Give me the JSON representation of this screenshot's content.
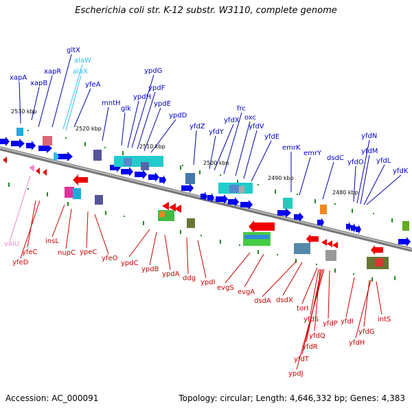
{
  "title": "Escherichia coli str. K-12 substr. W3110, complete genome",
  "footer": {
    "accession": "Accession: AC_000091",
    "stats": "Topology: circular; Length: 4,646,332 bp; Genes: 4,383"
  },
  "colors": {
    "forward_label": "#0000cc",
    "reverse_label": "#dd0000",
    "rna_forward": "#33bbee",
    "rna_reverse": "#ee88cc",
    "backbone": "#888888",
    "tick": "#228822"
  },
  "kbp_marks": [
    "2530 kbp",
    "2520 kbp",
    "2510 kbp",
    "2500 kbp",
    "2490 kbp",
    "2480 kbp"
  ],
  "forward_genes": [
    "xapA",
    "xapB",
    "xapR",
    "gltX",
    "alaW",
    "alaX",
    "yfeA",
    "mntH",
    "glk",
    "ypdH",
    "ypdG",
    "ypdF",
    "ypdE",
    "ypdD",
    "yfdZ",
    "yfdY",
    "yfdX",
    "frc",
    "oxc",
    "yfdV",
    "yfdE",
    "emrK",
    "emrY",
    "dsdC",
    "yfdO",
    "yfdN",
    "yfdM",
    "yfdL",
    "yfdK"
  ],
  "reverse_genes": [
    "valU",
    "yfeC",
    "yfeD",
    "insL",
    "nupC",
    "ypeC",
    "yfeO",
    "ypdC",
    "ypdB",
    "ypdA",
    "ddg",
    "ypdI",
    "evgS",
    "evgA",
    "dsdA",
    "dsdX",
    "torI",
    "yfdS",
    "yfdQ",
    "yfdR",
    "yfdT",
    "ypdJ",
    "yfdP",
    "yfdI",
    "yfdG",
    "yfdH",
    "intS"
  ]
}
